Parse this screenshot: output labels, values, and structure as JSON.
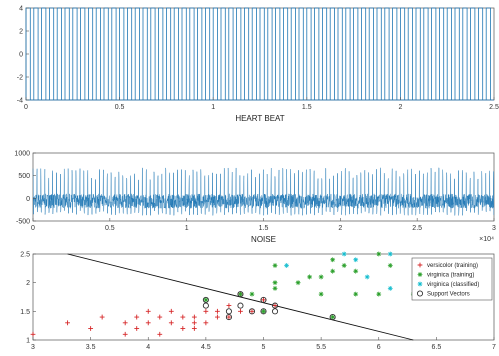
{
  "chart_data": [
    {
      "type": "line",
      "xlabel": "HEART BEAT",
      "xlim": [
        0,
        2.5
      ],
      "ylim": [
        -4,
        4
      ],
      "xticks": [
        "0",
        "0.5",
        "1",
        "1.5",
        "2",
        "2.5"
      ],
      "yticks": [
        "-4",
        "-2",
        "0",
        "2",
        "4"
      ],
      "pulse_count": 60,
      "pulse_min": -4,
      "pulse_max": 4,
      "color": "#1f77b4"
    },
    {
      "type": "line",
      "xlabel": "NOISE",
      "xlim": [
        0,
        3
      ],
      "ylim": [
        -500,
        1000
      ],
      "x_multiplier": "×10⁴",
      "xticks": [
        "0",
        "0.5",
        "1",
        "1.5",
        "2",
        "2.5",
        "3"
      ],
      "yticks": [
        "-500",
        "0",
        "500",
        "1000"
      ],
      "color": "#1f77b4"
    },
    {
      "type": "scatter",
      "xlim": [
        3,
        7
      ],
      "ylim": [
        1,
        2.5
      ],
      "xticks": [
        "3",
        "3.5",
        "4",
        "4.5",
        "5",
        "5.5",
        "6",
        "6.5",
        "7"
      ],
      "yticks": [
        "1",
        "1.5",
        "2",
        "2.5"
      ],
      "decision_line": {
        "x": [
          3.3,
          6.3
        ],
        "y": [
          2.5,
          1.0
        ]
      },
      "series": [
        {
          "name": "versicolor (training)",
          "marker": "plus",
          "color": "#d62728",
          "points": [
            [
              3.0,
              1.1
            ],
            [
              3.3,
              1.3
            ],
            [
              3.5,
              1.2
            ],
            [
              3.6,
              1.4
            ],
            [
              3.8,
              1.1
            ],
            [
              3.8,
              1.3
            ],
            [
              3.9,
              1.2
            ],
            [
              4.0,
              1.3
            ],
            [
              4.0,
              1.5
            ],
            [
              4.1,
              1.1
            ],
            [
              4.1,
              1.4
            ],
            [
              4.2,
              1.3
            ],
            [
              4.3,
              1.2
            ],
            [
              4.3,
              1.4
            ],
            [
              4.4,
              1.4
            ],
            [
              4.4,
              1.2
            ],
            [
              4.5,
              1.5
            ],
            [
              4.5,
              1.3
            ],
            [
              4.6,
              1.4
            ],
            [
              4.6,
              1.5
            ],
            [
              4.7,
              1.4
            ],
            [
              4.7,
              1.6
            ],
            [
              4.8,
              1.8
            ],
            [
              4.8,
              1.5
            ],
            [
              4.9,
              1.5
            ],
            [
              5.0,
              1.7
            ],
            [
              5.1,
              1.6
            ],
            [
              4.2,
              1.5
            ],
            [
              3.9,
              1.4
            ],
            [
              4.4,
              1.3
            ]
          ]
        },
        {
          "name": "virginica (training)",
          "marker": "star",
          "color": "#2ca02c",
          "points": [
            [
              4.5,
              1.7
            ],
            [
              4.8,
              1.8
            ],
            [
              4.9,
              1.8
            ],
            [
              5.0,
              1.5
            ],
            [
              5.1,
              1.9
            ],
            [
              5.1,
              2.0
            ],
            [
              5.3,
              2.0
            ],
            [
              5.4,
              2.1
            ],
            [
              5.5,
              1.8
            ],
            [
              5.5,
              2.1
            ],
            [
              5.6,
              1.4
            ],
            [
              5.6,
              2.2
            ],
            [
              5.6,
              2.4
            ],
            [
              5.7,
              2.3
            ],
            [
              5.8,
              2.2
            ],
            [
              5.8,
              1.8
            ],
            [
              6.0,
              2.5
            ],
            [
              6.0,
              1.8
            ],
            [
              6.1,
              2.3
            ],
            [
              6.3,
              1.8
            ],
            [
              6.6,
              2.1
            ],
            [
              6.7,
              2.2
            ],
            [
              6.9,
              2.3
            ],
            [
              5.1,
              2.3
            ]
          ]
        },
        {
          "name": "virginica (classified)",
          "marker": "star",
          "color": "#17becf",
          "points": [
            [
              5.9,
              2.1
            ],
            [
              5.2,
              2.3
            ],
            [
              5.7,
              2.5
            ],
            [
              6.1,
              2.5
            ],
            [
              5.8,
              2.4
            ],
            [
              6.4,
              2.0
            ],
            [
              6.1,
              1.9
            ]
          ]
        },
        {
          "name": "Support Vectors",
          "marker": "circle",
          "color": "#333333",
          "points": [
            [
              4.5,
              1.7
            ],
            [
              4.5,
              1.6
            ],
            [
              4.7,
              1.4
            ],
            [
              4.8,
              1.8
            ],
            [
              4.8,
              1.6
            ],
            [
              4.9,
              1.5
            ],
            [
              5.0,
              1.7
            ],
            [
              5.1,
              1.6
            ],
            [
              5.1,
              1.5
            ],
            [
              5.0,
              1.5
            ],
            [
              5.6,
              1.4
            ],
            [
              4.7,
              1.5
            ]
          ]
        }
      ]
    }
  ]
}
